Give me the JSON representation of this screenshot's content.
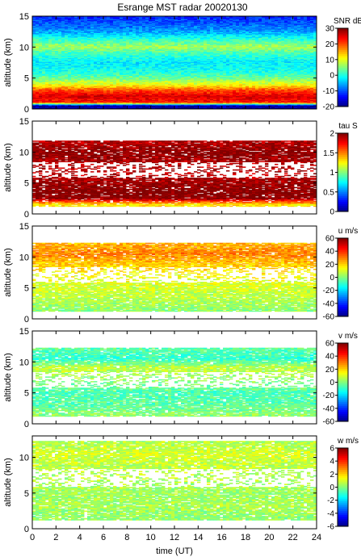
{
  "chart_data": {
    "type": "heatmap",
    "title": "Esrange MST radar 20020130",
    "xlabel": "time (UT)",
    "x_ticks": [
      "0",
      "2",
      "4",
      "6",
      "8",
      "10",
      "12",
      "14",
      "16",
      "18",
      "20",
      "22",
      "24"
    ],
    "xlim": [
      0,
      24
    ],
    "colormap": "jet",
    "panels": [
      {
        "name": "snr",
        "ylabel": "altitude (km)",
        "ylim": [
          0,
          15
        ],
        "y_ticks": [
          "0",
          "5",
          "10",
          "15"
        ],
        "colorbar_title": "SNR dB",
        "colorbar_ticks": [
          "-20",
          "-10",
          "0",
          "10",
          "20",
          "30"
        ],
        "colorbar_range": [
          -20,
          30
        ],
        "altitude_profile": [
          {
            "alt": 0.5,
            "value": -18
          },
          {
            "alt": 1.0,
            "value": 22
          },
          {
            "alt": 2.0,
            "value": 26
          },
          {
            "alt": 3.0,
            "value": 20
          },
          {
            "alt": 4.0,
            "value": 10
          },
          {
            "alt": 5.0,
            "value": 4
          },
          {
            "alt": 6.0,
            "value": 0
          },
          {
            "alt": 7.5,
            "value": -2
          },
          {
            "alt": 9.0,
            "value": 2
          },
          {
            "alt": 10.0,
            "value": 7
          },
          {
            "alt": 11.0,
            "value": 2
          },
          {
            "alt": 12.5,
            "value": -6
          },
          {
            "alt": 14.0,
            "value": -10
          },
          {
            "alt": 15.0,
            "value": -12
          }
        ]
      },
      {
        "name": "tau",
        "ylabel": "altitude (km)",
        "ylim": [
          0,
          15
        ],
        "y_ticks": [
          "0",
          "5",
          "10",
          "15"
        ],
        "colorbar_title": "tau S",
        "colorbar_ticks": [
          "0",
          "0.5",
          "1",
          "1.5",
          "2"
        ],
        "colorbar_range": [
          0,
          2
        ],
        "altitude_profile": [
          {
            "alt": 1.5,
            "value": 1.3
          },
          {
            "alt": 2.5,
            "value": 2.0
          },
          {
            "alt": 4.0,
            "value": 2.0
          },
          {
            "alt": 6.0,
            "value": 1.9
          },
          {
            "alt": 8.0,
            "value": 1.9
          },
          {
            "alt": 10.0,
            "value": 2.0
          },
          {
            "alt": 11.5,
            "value": 1.9
          }
        ]
      },
      {
        "name": "u",
        "ylabel": "altitude (km)",
        "ylim": [
          0,
          15
        ],
        "y_ticks": [
          "0",
          "5",
          "10",
          "15"
        ],
        "colorbar_title": "u m/s",
        "colorbar_ticks": [
          "-60",
          "-40",
          "-20",
          "0",
          "20",
          "40",
          "60"
        ],
        "colorbar_range": [
          -60,
          60
        ],
        "altitude_profile": [
          {
            "alt": 1.5,
            "value": 2
          },
          {
            "alt": 3.0,
            "value": 6
          },
          {
            "alt": 5.0,
            "value": 10
          },
          {
            "alt": 7.0,
            "value": 14
          },
          {
            "alt": 9.0,
            "value": 22
          },
          {
            "alt": 10.5,
            "value": 30
          },
          {
            "alt": 12.0,
            "value": 24
          }
        ]
      },
      {
        "name": "v",
        "ylabel": "altitude (km)",
        "ylim": [
          0,
          15
        ],
        "y_ticks": [
          "0",
          "5",
          "10",
          "15"
        ],
        "colorbar_title": "v m/s",
        "colorbar_ticks": [
          "-60",
          "-40",
          "-20",
          "0",
          "20",
          "40",
          "60"
        ],
        "colorbar_range": [
          -60,
          60
        ],
        "altitude_profile": [
          {
            "alt": 1.5,
            "value": 2
          },
          {
            "alt": 3.0,
            "value": -4
          },
          {
            "alt": 5.0,
            "value": -6
          },
          {
            "alt": 7.0,
            "value": 2
          },
          {
            "alt": 9.0,
            "value": 8
          },
          {
            "alt": 10.5,
            "value": -10
          },
          {
            "alt": 12.0,
            "value": -4
          }
        ]
      },
      {
        "name": "w",
        "ylabel": "altitude (km)",
        "ylim": [
          0,
          13
        ],
        "y_ticks": [
          "0",
          "5",
          "10"
        ],
        "colorbar_title": "w m/s",
        "colorbar_ticks": [
          "-6",
          "-4",
          "-2",
          "0",
          "2",
          "4",
          "6"
        ],
        "colorbar_range": [
          -6,
          6
        ],
        "altitude_profile": [
          {
            "alt": 1.5,
            "value": 0.2
          },
          {
            "alt": 3.0,
            "value": 0.5
          },
          {
            "alt": 5.0,
            "value": 0.4
          },
          {
            "alt": 7.0,
            "value": 0.6
          },
          {
            "alt": 9.0,
            "value": 0.8
          },
          {
            "alt": 10.5,
            "value": 1.0
          },
          {
            "alt": 12.0,
            "value": 0.6
          }
        ]
      }
    ]
  }
}
